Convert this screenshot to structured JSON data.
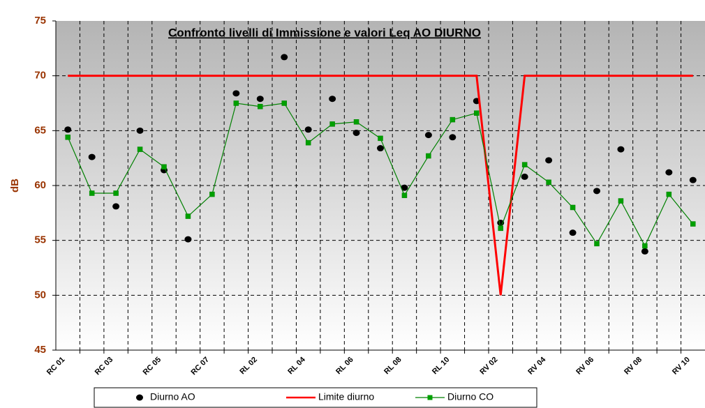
{
  "chart_data": {
    "type": "line",
    "title": "Confronto livelli di Immissione e valori Leq AO  DIURNO",
    "y_label": "dB",
    "categories": [
      "RC 01",
      null,
      "RC 03",
      null,
      "RC 05",
      null,
      "RC 07",
      null,
      "RL 02",
      null,
      "RL 04",
      null,
      "RL 06",
      null,
      "RL 08",
      null,
      "RL 10",
      null,
      "RV 02",
      null,
      "RV 04",
      null,
      "RV 06",
      null,
      "RV 08",
      null,
      "RV 10"
    ],
    "series": [
      {
        "name": "Diurno AO",
        "color": "#000000",
        "style": "points",
        "values": [
          65.1,
          62.6,
          58.1,
          65.0,
          61.4,
          55.1,
          null,
          68.4,
          67.9,
          71.7,
          65.1,
          67.9,
          64.8,
          63.4,
          59.8,
          64.6,
          64.4,
          67.7,
          56.6,
          60.8,
          62.3,
          55.7,
          59.5,
          63.3,
          54.0,
          61.2,
          60.5
        ]
      },
      {
        "name": "Limite diurno",
        "color": "#ff0000",
        "style": "line",
        "values": [
          70,
          70,
          70,
          70,
          70,
          70,
          70,
          70,
          70,
          70,
          70,
          70,
          70,
          70,
          70,
          70,
          70,
          70,
          50,
          70,
          70,
          70,
          70,
          70,
          70,
          70,
          70
        ]
      },
      {
        "name": "Diurno CO",
        "color": "#008000",
        "marker_color": "#00a000",
        "style": "line-markers",
        "values": [
          64.4,
          59.3,
          59.3,
          63.3,
          61.7,
          57.2,
          59.2,
          67.5,
          67.2,
          67.5,
          63.9,
          65.6,
          65.8,
          64.3,
          59.1,
          62.7,
          66.0,
          66.6,
          56.1,
          61.9,
          60.3,
          58.0,
          54.7,
          58.6,
          54.5,
          59.2,
          56.5
        ]
      }
    ],
    "ylim": [
      45,
      75
    ],
    "yticks": [
      45,
      50,
      55,
      60,
      65,
      70,
      75
    ],
    "grid": true
  }
}
